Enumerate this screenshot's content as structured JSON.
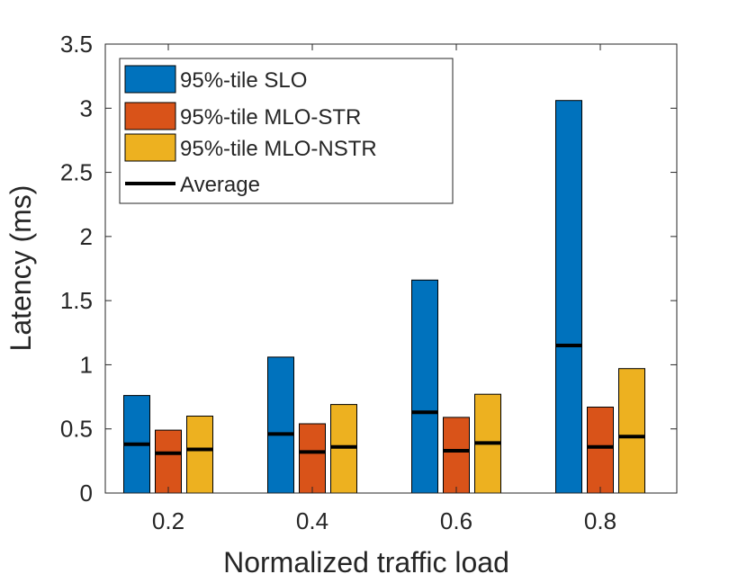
{
  "chart_data": {
    "type": "bar",
    "title": "",
    "xlabel": "Normalized traffic load",
    "ylabel": "Latency (ms)",
    "ylim": [
      0,
      3.5
    ],
    "yticks": [
      0,
      0.5,
      1,
      1.5,
      2,
      2.5,
      3,
      3.5
    ],
    "ytick_labels": [
      "0",
      "0.5",
      "1",
      "1.5",
      "2",
      "2.5",
      "3",
      "3.5"
    ],
    "categories": [
      "0.2",
      "0.4",
      "0.6",
      "0.8"
    ],
    "legend_position": "top-left",
    "series": [
      {
        "name": "95%-tile SLO",
        "color": "#0072BD",
        "values": [
          0.76,
          1.06,
          1.66,
          3.06
        ],
        "average": [
          0.38,
          0.46,
          0.63,
          1.15
        ]
      },
      {
        "name": "95%-tile MLO-STR",
        "color": "#D95319",
        "values": [
          0.49,
          0.54,
          0.59,
          0.67
        ],
        "average": [
          0.31,
          0.32,
          0.33,
          0.36
        ]
      },
      {
        "name": "95%-tile MLO-NSTR",
        "color": "#EDB120",
        "values": [
          0.6,
          0.69,
          0.77,
          0.97
        ],
        "average": [
          0.34,
          0.36,
          0.39,
          0.44
        ]
      }
    ],
    "average_legend_label": "Average",
    "average_color": "#000000"
  }
}
